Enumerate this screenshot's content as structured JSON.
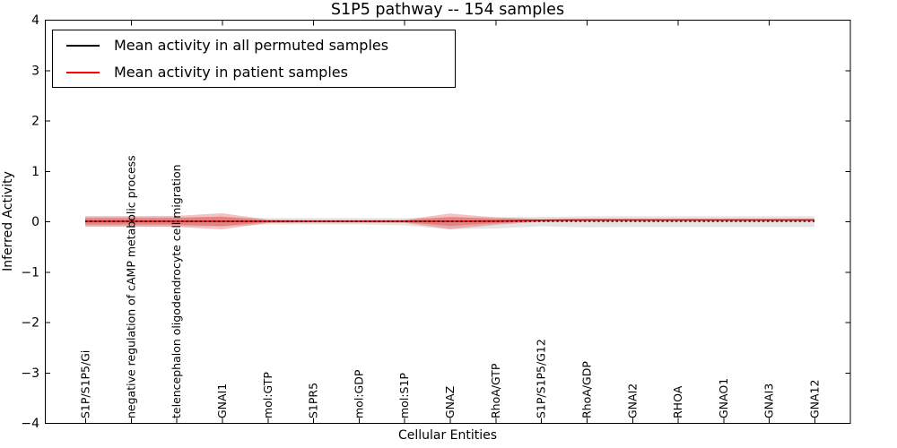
{
  "figure_title": "S1P5 pathway -- 154 samples",
  "legend": {
    "items": [
      {
        "label": "Mean activity in all permuted samples",
        "color": "#000000"
      },
      {
        "label": "Mean activity in patient samples",
        "color": "#ff0000"
      }
    ]
  },
  "colors": {
    "patient_line": "#ee1111",
    "permuted_line": "#000000",
    "patient_band": "rgba(225,50,50,0.30)",
    "permuted_band": "rgba(130,130,130,0.22)",
    "axis": "#000000"
  },
  "chart_data": {
    "type": "line",
    "title": "S1P5 pathway -- 154 samples",
    "xlabel": "Cellular Entities",
    "ylabel": "Inferred Activity",
    "ylim": [
      -4,
      4
    ],
    "yticks": [
      4,
      3,
      2,
      1,
      0,
      -1,
      -2,
      -3,
      -4
    ],
    "grid": false,
    "legend_position": "upper left",
    "categories": [
      "S1P/S1P5/Gi",
      "negative regulation of cAMP metabolic process",
      "telencephalon oligodendrocyte cell migration",
      "GNAI1",
      "mol:GTP",
      "S1PR5",
      "mol:GDP",
      "mol:S1P",
      "GNAZ",
      "RhoA/GTP",
      "S1P/S1P5/G12",
      "RhoA/GDP",
      "GNAI2",
      "RHOA",
      "GNAO1",
      "GNAI3",
      "GNA12"
    ],
    "series": [
      {
        "name": "Mean activity in all permuted samples",
        "color": "#000000",
        "style": "dashed",
        "values": [
          0,
          0,
          0,
          0,
          0,
          0,
          0,
          0,
          0,
          0,
          0,
          0,
          0,
          0,
          0,
          0,
          0
        ]
      },
      {
        "name": "Mean activity in patient samples",
        "color": "#ee1111",
        "style": "solid",
        "values": [
          0,
          0,
          0,
          0,
          0,
          0,
          0,
          0,
          0,
          0.005,
          0.02,
          0.027,
          0.027,
          0.027,
          0.027,
          0.027,
          0.027
        ]
      }
    ],
    "bands": [
      {
        "name": "permuted-activity-spread",
        "color": "rgba(130,130,130,0.22)",
        "upper": [
          0.08,
          0.08,
          0.08,
          0.08,
          0.065,
          0.065,
          0.065,
          0.065,
          0.07,
          0.08,
          0.09,
          0.1,
          0.1,
          0.1,
          0.1,
          0.1,
          0.1
        ],
        "lower": [
          -0.1,
          -0.1,
          -0.1,
          -0.1,
          -0.065,
          -0.065,
          -0.065,
          -0.08,
          -0.16,
          -0.14,
          -0.1,
          -0.12,
          -0.11,
          -0.11,
          -0.11,
          -0.11,
          -0.11
        ]
      },
      {
        "name": "patient-activity-spread-outer",
        "color": "rgba(225,50,50,0.30)",
        "upper": [
          0.105,
          0.105,
          0.11,
          0.16,
          0.035,
          0.027,
          0.027,
          0.03,
          0.155,
          0.08,
          0.047,
          0.052,
          0.049,
          0.049,
          0.049,
          0.049,
          0.049
        ],
        "lower": [
          -0.105,
          -0.105,
          -0.11,
          -0.16,
          -0.035,
          -0.027,
          -0.027,
          -0.03,
          -0.155,
          -0.07,
          -0.007,
          0.002,
          0.005,
          0.005,
          0.005,
          0.005,
          0.005
        ]
      },
      {
        "name": "patient-activity-spread-inner",
        "color": "rgba(225,50,50,0.35)",
        "upper": [
          0.062,
          0.062,
          0.066,
          0.095,
          0.02,
          0.014,
          0.014,
          0.018,
          0.09,
          0.05,
          0.034,
          0.04,
          0.038,
          0.038,
          0.038,
          0.038,
          0.038
        ],
        "lower": [
          -0.062,
          -0.062,
          -0.066,
          -0.095,
          -0.02,
          -0.014,
          -0.014,
          -0.018,
          -0.09,
          -0.04,
          0.006,
          0.014,
          0.016,
          0.016,
          0.016,
          0.016,
          0.016
        ]
      }
    ]
  }
}
